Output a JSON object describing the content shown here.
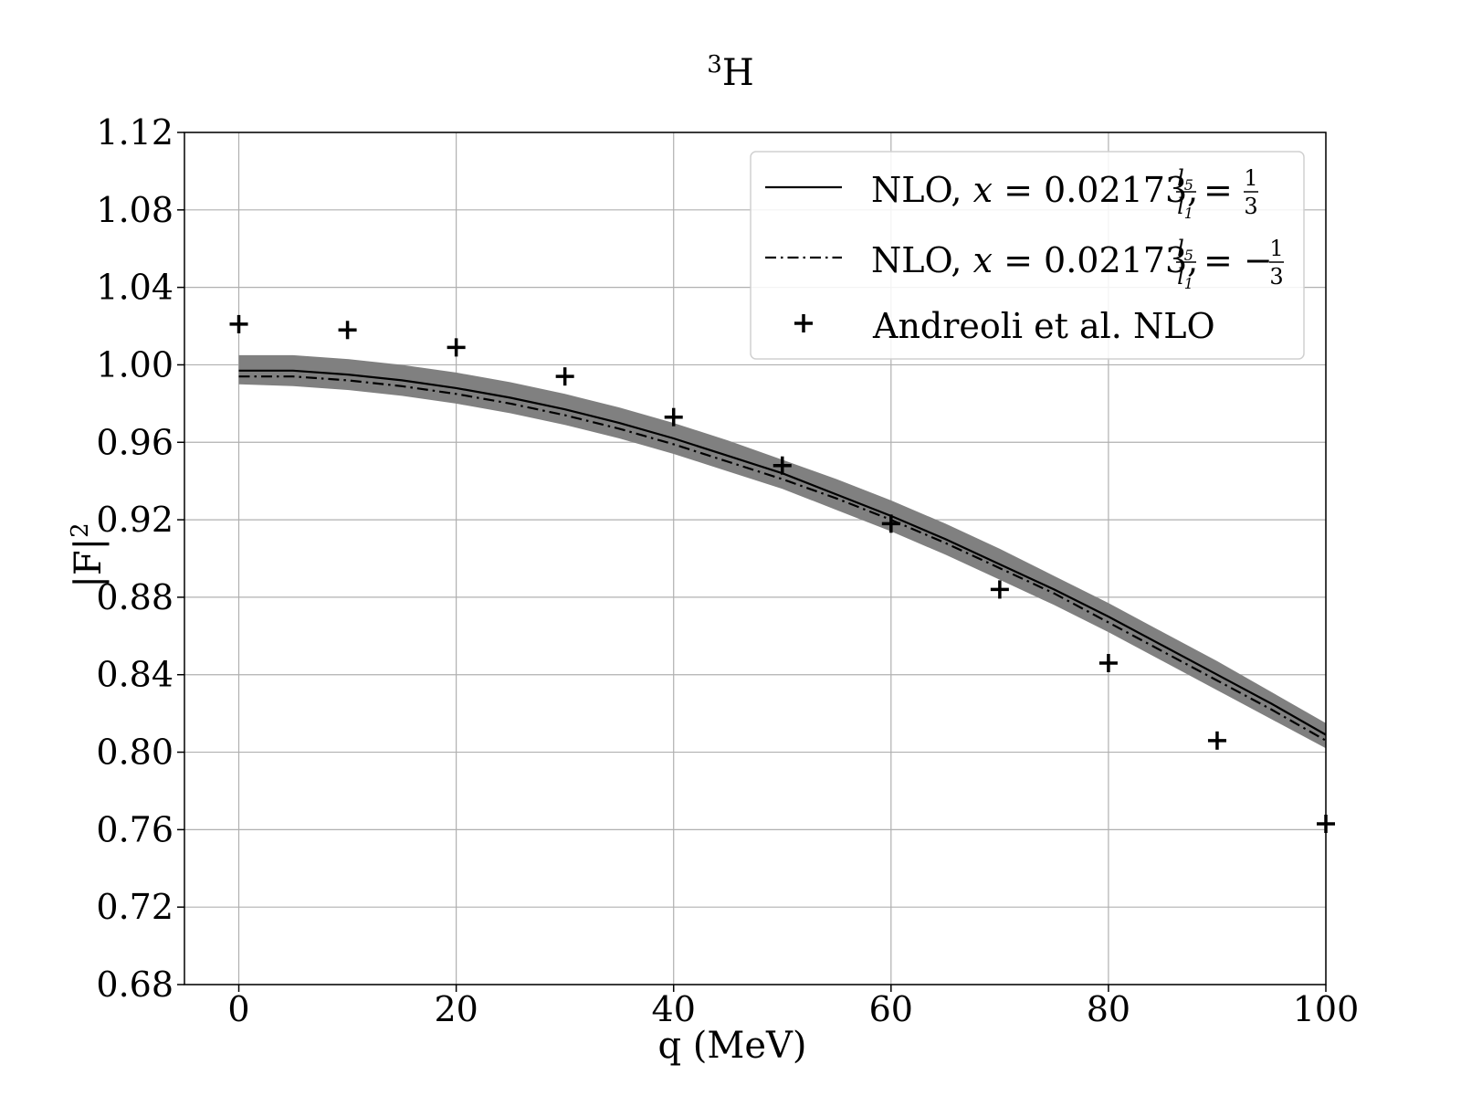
{
  "chart_data": {
    "type": "line",
    "title": "³H",
    "xlabel": "q (MeV)",
    "ylabel": "|F|²",
    "xlim": [
      -5,
      100
    ],
    "ylim": [
      0.68,
      1.12
    ],
    "xticks": [
      0,
      20,
      40,
      60,
      80,
      100
    ],
    "xtick_labels": [
      "0",
      "20",
      "40",
      "60",
      "80",
      "100"
    ],
    "yticks": [
      0.68,
      0.72,
      0.76,
      0.8,
      0.84,
      0.88,
      0.92,
      0.96,
      1.0,
      1.04,
      1.08,
      1.12
    ],
    "ytick_labels": [
      "0.68",
      "0.72",
      "0.76",
      "0.80",
      "0.84",
      "0.88",
      "0.92",
      "0.96",
      "1.00",
      "1.04",
      "1.08",
      "1.12"
    ],
    "grid": true,
    "legend_position": "top-right",
    "band": {
      "color": "#808080",
      "x": [
        0,
        5,
        10,
        15,
        20,
        25,
        30,
        35,
        40,
        45,
        50,
        55,
        60,
        65,
        70,
        75,
        80,
        85,
        90,
        95,
        100
      ],
      "upper": [
        1.005,
        1.005,
        1.003,
        1.0,
        0.996,
        0.991,
        0.985,
        0.978,
        0.97,
        0.961,
        0.951,
        0.941,
        0.93,
        0.918,
        0.905,
        0.891,
        0.877,
        0.862,
        0.847,
        0.831,
        0.815
      ],
      "lower": [
        0.99,
        0.989,
        0.987,
        0.984,
        0.98,
        0.975,
        0.969,
        0.962,
        0.954,
        0.945,
        0.936,
        0.925,
        0.914,
        0.902,
        0.889,
        0.876,
        0.862,
        0.847,
        0.832,
        0.817,
        0.802
      ]
    },
    "series": [
      {
        "name": "NLO, x = 0.02173, l5/l1 = 1/3",
        "style": "solid",
        "color": "#000000",
        "x": [
          0,
          5,
          10,
          15,
          20,
          25,
          30,
          35,
          40,
          45,
          50,
          55,
          60,
          65,
          70,
          75,
          80,
          85,
          90,
          95,
          100
        ],
        "values": [
          0.997,
          0.997,
          0.995,
          0.992,
          0.988,
          0.983,
          0.977,
          0.97,
          0.962,
          0.953,
          0.944,
          0.933,
          0.922,
          0.91,
          0.897,
          0.884,
          0.87,
          0.855,
          0.84,
          0.825,
          0.809
        ]
      },
      {
        "name": "NLO, x = 0.02173, l5/l1 = −1/3",
        "style": "dashdot",
        "color": "#000000",
        "x": [
          0,
          5,
          10,
          15,
          20,
          25,
          30,
          35,
          40,
          45,
          50,
          55,
          60,
          65,
          70,
          75,
          80,
          85,
          90,
          95,
          100
        ],
        "values": [
          0.994,
          0.994,
          0.992,
          0.989,
          0.985,
          0.98,
          0.974,
          0.967,
          0.959,
          0.95,
          0.941,
          0.931,
          0.92,
          0.908,
          0.895,
          0.882,
          0.867,
          0.852,
          0.837,
          0.822,
          0.806
        ]
      },
      {
        "name": "Andreoli et al. NLO",
        "style": "marker-plus",
        "color": "#000000",
        "x": [
          0,
          10,
          20,
          30,
          40,
          50,
          60,
          70,
          80,
          90,
          100
        ],
        "values": [
          1.021,
          1.018,
          1.009,
          0.994,
          0.973,
          0.948,
          0.918,
          0.884,
          0.846,
          0.806,
          0.763
        ]
      }
    ],
    "legend": {
      "entries": [
        {
          "prefix": "NLO, ",
          "var": "x",
          "eq": " = 0.02173, ",
          "num": "l",
          "num_sub": "5",
          "den": "l",
          "den_sub": "1",
          "rel": " = ",
          "frac_num": "1",
          "frac_den": "3",
          "sign": ""
        },
        {
          "prefix": "NLO, ",
          "var": "x",
          "eq": " = 0.02173, ",
          "num": "l",
          "num_sub": "5",
          "den": "l",
          "den_sub": "1",
          "rel": " = ",
          "frac_num": "1",
          "frac_den": "3",
          "sign": "−"
        },
        {
          "label": "Andreoli et al. NLO"
        }
      ]
    }
  }
}
